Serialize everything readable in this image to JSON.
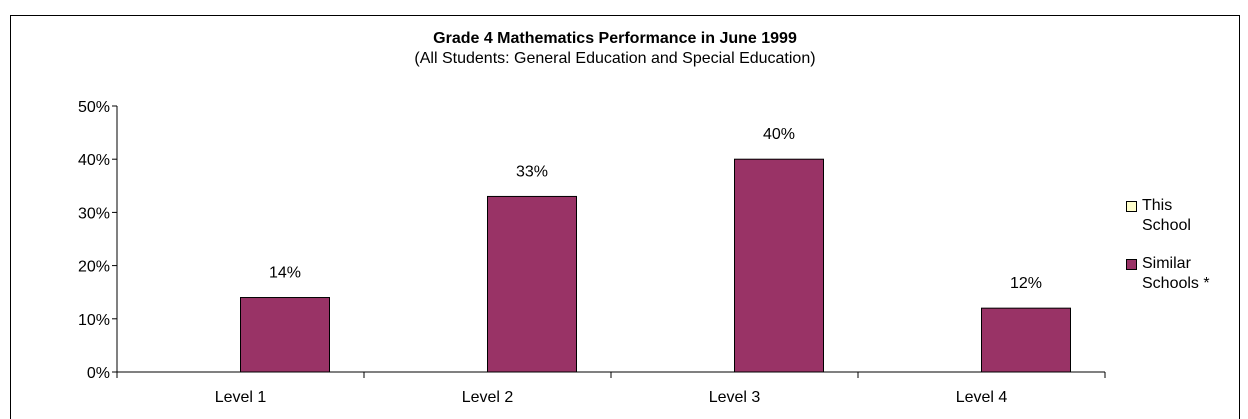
{
  "chart_data": {
    "type": "bar",
    "title": "Grade 4 Mathematics Performance in June 1999",
    "subtitle": "(All Students: General Education and Special Education)",
    "categories": [
      "Level 1",
      "Level 2",
      "Level 3",
      "Level 4"
    ],
    "series": [
      {
        "name": "This School",
        "color": "#ffffcc",
        "values": [
          null,
          null,
          null,
          null
        ]
      },
      {
        "name": "Similar Schools *",
        "color": "#993366",
        "values": [
          14,
          33,
          40,
          12
        ]
      }
    ],
    "data_labels": [
      "14%",
      "33%",
      "40%",
      "12%"
    ],
    "yticks": [
      "0%",
      "10%",
      "20%",
      "30%",
      "40%",
      "50%"
    ],
    "ylim": [
      0,
      50
    ],
    "legend_position": "right",
    "legend_labels": [
      {
        "line1": "This",
        "line2": "School"
      },
      {
        "line1": "Similar",
        "line2": "Schools *"
      }
    ]
  }
}
